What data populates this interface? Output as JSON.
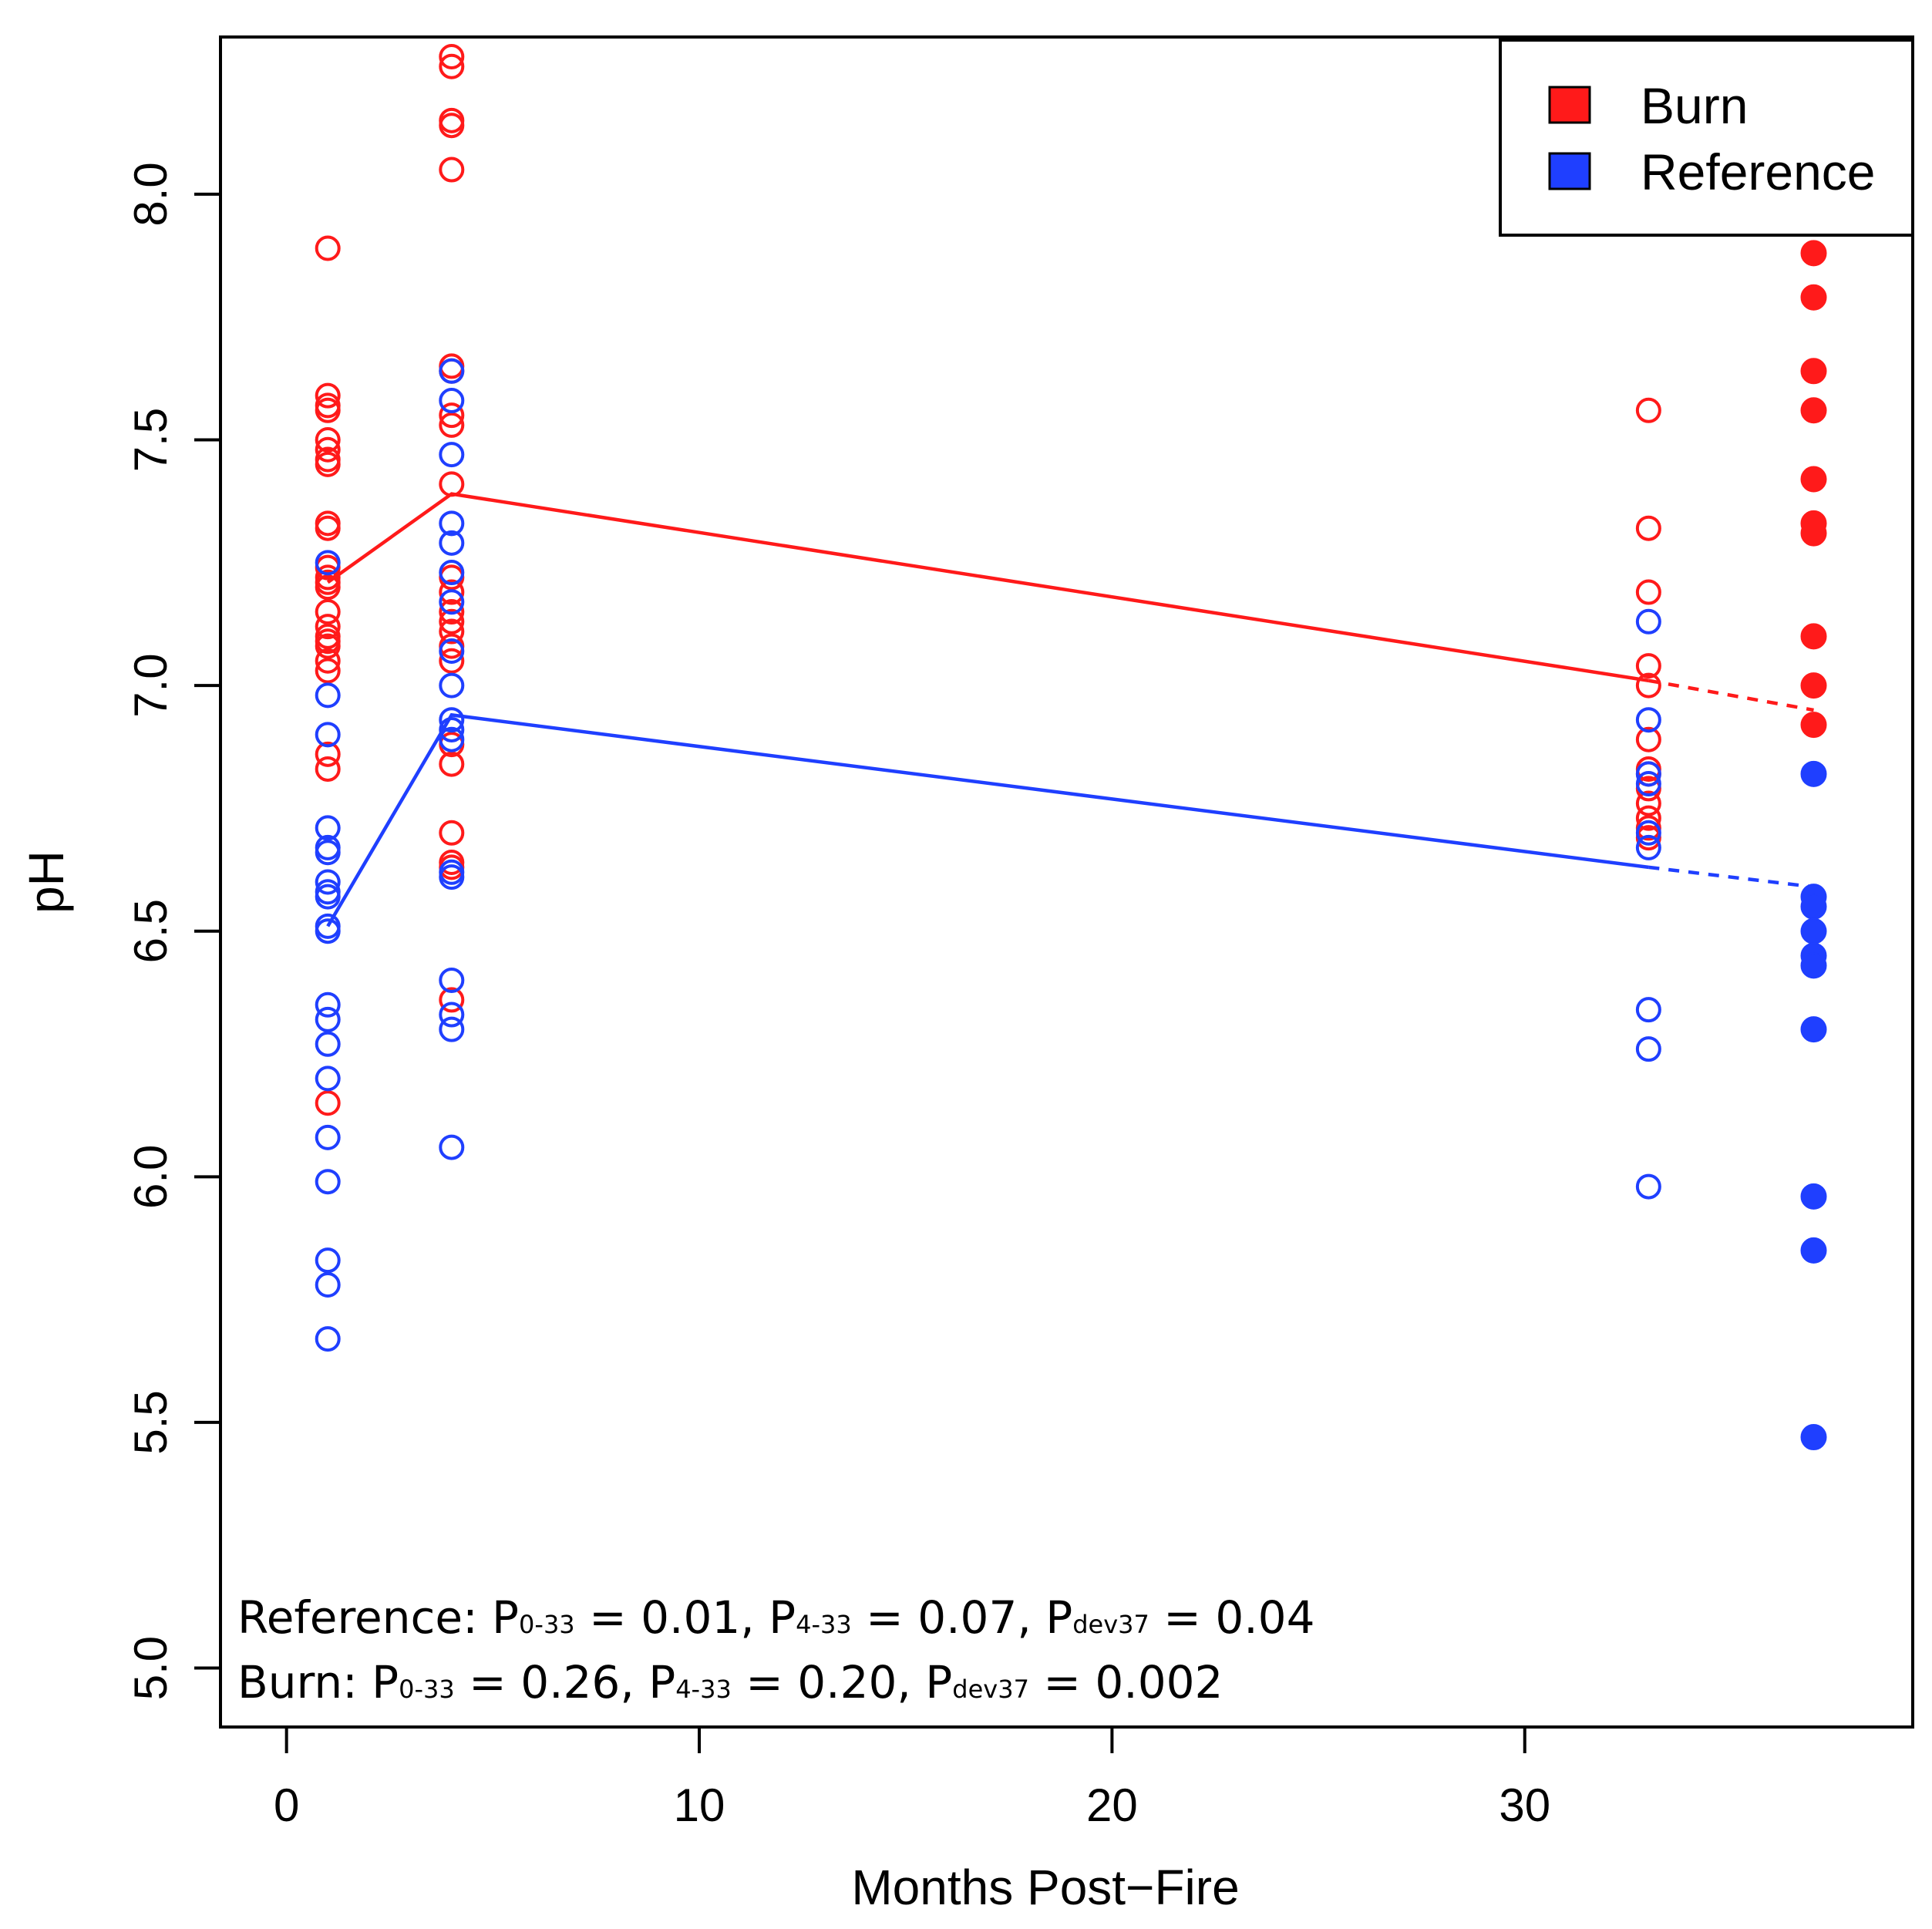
{
  "chart_data": {
    "type": "scatter",
    "title": "",
    "xlabel": "Months Post−Fire",
    "ylabel": "pH",
    "xlim": [
      -1.6,
      39.4
    ],
    "ylim": [
      4.88,
      8.32
    ],
    "xticks": [
      0,
      10,
      20,
      30
    ],
    "xtick_labels": [
      "0",
      "10",
      "20",
      "30"
    ],
    "yticks": [
      5.0,
      5.5,
      6.0,
      6.5,
      7.0,
      7.5,
      8.0
    ],
    "ytick_labels": [
      "5.0",
      "5.5",
      "6.0",
      "6.5",
      "7.0",
      "7.5",
      "8.0"
    ],
    "grid": false,
    "legend": {
      "position": "top-right",
      "entries": [
        {
          "label": "Burn",
          "color": "#ff1a1a"
        },
        {
          "label": "Reference",
          "color": "#1f3fff"
        }
      ]
    },
    "series": [
      {
        "name": "Burn",
        "color": "#ff1a1a",
        "points_open": [
          {
            "x": 1,
            "y": [
              7.89,
              7.59,
              7.57,
              7.56,
              7.5,
              7.48,
              7.46,
              7.45,
              7.33,
              7.32,
              7.24,
              7.22,
              7.21,
              7.2,
              7.15,
              7.12,
              7.1,
              7.09,
              7.08,
              7.05,
              7.03,
              6.86,
              6.83,
              6.15
            ]
          },
          {
            "x": 4,
            "y": [
              8.28,
              8.26,
              8.15,
              8.14,
              8.05,
              7.65,
              7.64,
              7.55,
              7.53,
              7.41,
              7.22,
              7.19,
              7.15,
              7.13,
              7.11,
              7.08,
              7.05,
              6.88,
              6.84,
              6.7,
              6.64,
              6.63,
              6.36
            ]
          },
          {
            "x": 33,
            "y": [
              7.56,
              7.32,
              7.19,
              7.04,
              7.0,
              6.89,
              6.83,
              6.82,
              6.79,
              6.76,
              6.73,
              6.71,
              6.69
            ]
          }
        ],
        "points_filled": [
          {
            "x": 37,
            "y": [
              7.88,
              7.79,
              7.64,
              7.56,
              7.42,
              7.33,
              7.31,
              7.1,
              7.0,
              6.92
            ]
          }
        ],
        "trend": [
          {
            "x": 1,
            "y": 7.21
          },
          {
            "x": 4,
            "y": 7.39
          },
          {
            "x": 33,
            "y": 7.01
          }
        ],
        "trend_dashed": [
          {
            "x": 33,
            "y": 7.01
          },
          {
            "x": 37,
            "y": 6.95
          }
        ]
      },
      {
        "name": "Reference",
        "color": "#1f3fff",
        "points_open": [
          {
            "x": 1,
            "y": [
              7.25,
              6.98,
              6.9,
              6.71,
              6.67,
              6.66,
              6.6,
              6.58,
              6.57,
              6.51,
              6.5,
              6.35,
              6.32,
              6.27,
              6.2,
              6.08,
              5.99,
              5.83,
              5.78,
              5.67
            ]
          },
          {
            "x": 4,
            "y": [
              7.64,
              7.58,
              7.47,
              7.33,
              7.29,
              7.23,
              7.17,
              7.07,
              7.0,
              6.93,
              6.91,
              6.89,
              6.62,
              6.61,
              6.4,
              6.33,
              6.3,
              6.06
            ]
          },
          {
            "x": 33,
            "y": [
              7.13,
              6.93,
              6.82,
              6.8,
              6.7,
              6.67,
              6.34,
              6.26,
              5.98
            ]
          }
        ],
        "points_filled": [
          {
            "x": 37,
            "y": [
              6.82,
              6.57,
              6.55,
              6.5,
              6.45,
              6.43,
              6.3,
              5.96,
              5.85,
              5.47
            ]
          }
        ],
        "trend": [
          {
            "x": 1,
            "y": 6.51
          },
          {
            "x": 4,
            "y": 6.94
          },
          {
            "x": 33,
            "y": 6.63
          }
        ],
        "trend_dashed": [
          {
            "x": 33,
            "y": 6.63
          },
          {
            "x": 37,
            "y": 6.59
          }
        ]
      }
    ],
    "annotations": [
      {
        "series": "Reference",
        "parts": [
          {
            "t": "Reference: P",
            "sub": false
          },
          {
            "t": "0-33",
            "sub": true
          },
          {
            "t": " = 0.01, P",
            "sub": false
          },
          {
            "t": "4-33",
            "sub": true
          },
          {
            "t": " = 0.07, P",
            "sub": false
          },
          {
            "t": "dev37",
            "sub": true
          },
          {
            "t": " = 0.04",
            "sub": false
          }
        ]
      },
      {
        "series": "Burn",
        "parts": [
          {
            "t": "Burn: P",
            "sub": false
          },
          {
            "t": "0-33",
            "sub": true
          },
          {
            "t": " = 0.26, P",
            "sub": false
          },
          {
            "t": "4-33",
            "sub": true
          },
          {
            "t": " = 0.20, P",
            "sub": false
          },
          {
            "t": "dev37",
            "sub": true
          },
          {
            "t": " = 0.002",
            "sub": false
          }
        ]
      }
    ]
  }
}
